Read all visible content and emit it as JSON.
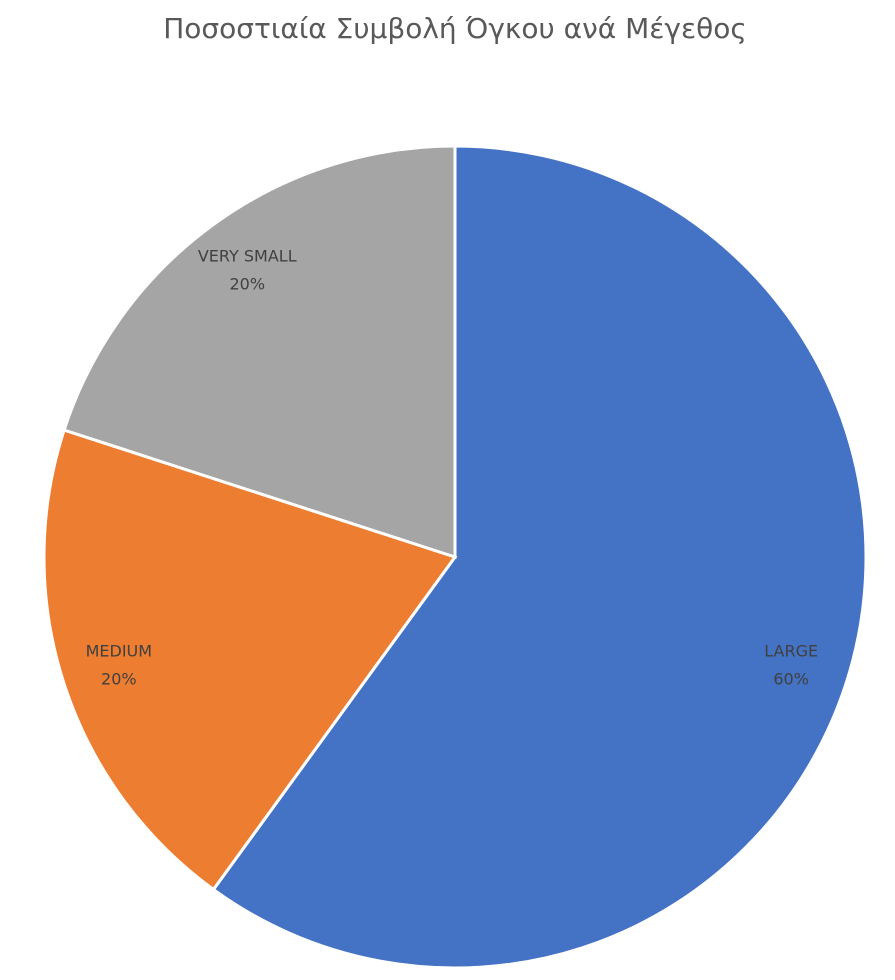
{
  "chart_data": {
    "type": "pie",
    "title": "Ποσοστιαία Συμβολή Όγκου ανά Μέγεθος",
    "categories": [
      "LARGE",
      "MEDIUM",
      "VERY SMALL"
    ],
    "values": [
      60,
      20,
      20
    ],
    "value_labels": [
      "60%",
      "20%",
      "20%"
    ],
    "colors": [
      "#4472c4",
      "#ed7d31",
      "#a5a5a5"
    ]
  }
}
